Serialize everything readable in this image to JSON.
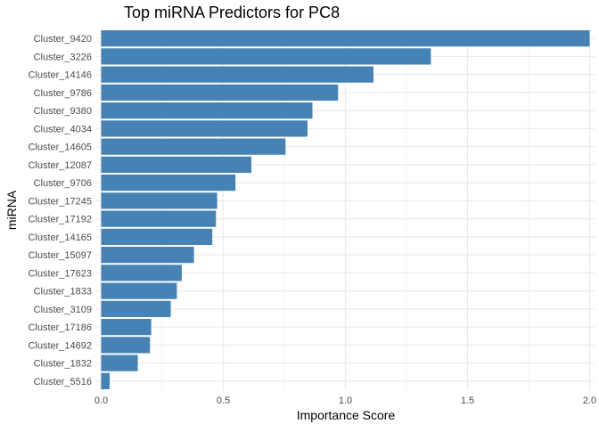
{
  "chart_data": {
    "type": "bar",
    "orientation": "horizontal",
    "title": "Top miRNA Predictors for PC8",
    "xlabel": "Importance Score",
    "ylabel": "miRNA",
    "xlim": [
      -0.02,
      2.02
    ],
    "xticks": [
      0.0,
      0.5,
      1.0,
      1.5,
      2.0
    ],
    "xtick_labels": [
      "0.0",
      "0.5",
      "1.0",
      "1.5",
      "2.0"
    ],
    "grid": true,
    "legend": "none",
    "bar_color": "#4682B4",
    "categories": [
      "Cluster_9420",
      "Cluster_3226",
      "Cluster_14146",
      "Cluster_9786",
      "Cluster_9380",
      "Cluster_4034",
      "Cluster_14605",
      "Cluster_12087",
      "Cluster_9706",
      "Cluster_17245",
      "Cluster_17192",
      "Cluster_14165",
      "Cluster_15097",
      "Cluster_17623",
      "Cluster_1833",
      "Cluster_3109",
      "Cluster_17186",
      "Cluster_14692",
      "Cluster_1832",
      "Cluster_5516"
    ],
    "values": [
      2.0,
      1.35,
      1.115,
      0.97,
      0.865,
      0.845,
      0.755,
      0.615,
      0.55,
      0.475,
      0.47,
      0.455,
      0.38,
      0.33,
      0.31,
      0.285,
      0.205,
      0.2,
      0.15,
      0.035
    ]
  }
}
